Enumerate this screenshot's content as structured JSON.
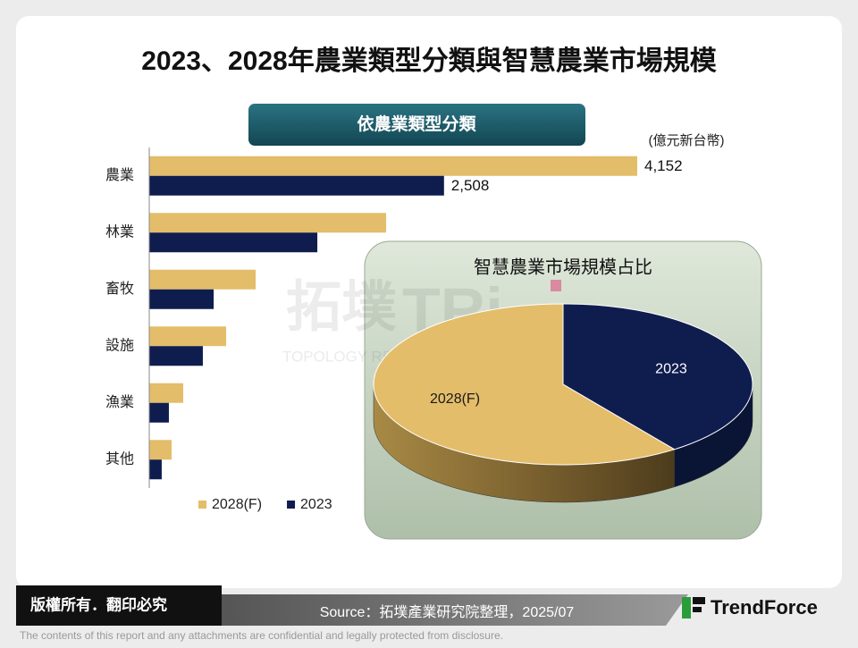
{
  "page": {
    "title": "2023、2028年農業類型分類與智慧農業市場規模",
    "subtitle": "依農業類型分類",
    "watermark": [
      "拓墣",
      "TRi",
      "TOPOLOGY RESEARCH INSTITUTE"
    ],
    "footer": {
      "copyright": "版權所有．翻印必究",
      "source": "Source：拓墣產業研究院整理，2025/07",
      "brand": "TrendForce",
      "disclaimer": "The contents of this report and any attachments are confidential and legally protected from disclosure."
    }
  },
  "chart_data": [
    {
      "type": "bar",
      "orientation": "horizontal",
      "unit_label": "(億元新台幣)",
      "legend": "bottom",
      "categories": [
        "農業",
        "林業",
        "畜牧",
        "設施",
        "漁業",
        "其他"
      ],
      "series": [
        {
          "name": "2028(F)",
          "color": "#e4bd6a",
          "values": [
            4152,
            2015,
            905,
            654,
            289,
            190
          ],
          "value_labels": [
            "4,152",
            null,
            null,
            null,
            null,
            null
          ]
        },
        {
          "name": "2023",
          "color": "#0f1d4e",
          "values": [
            2508,
            1430,
            548,
            456,
            167,
            106
          ],
          "value_labels": [
            "2,508",
            null,
            null,
            null,
            null,
            null
          ]
        }
      ]
    },
    {
      "type": "pie",
      "title": "智慧農業市場規模占比",
      "categories": [
        "2023",
        "2028(F)"
      ],
      "values": [
        40,
        60
      ],
      "colors": [
        "#0f1d4e",
        "#e4bd6a"
      ],
      "label_colors": [
        "#ffffff",
        "#1a1a1a"
      ]
    }
  ]
}
